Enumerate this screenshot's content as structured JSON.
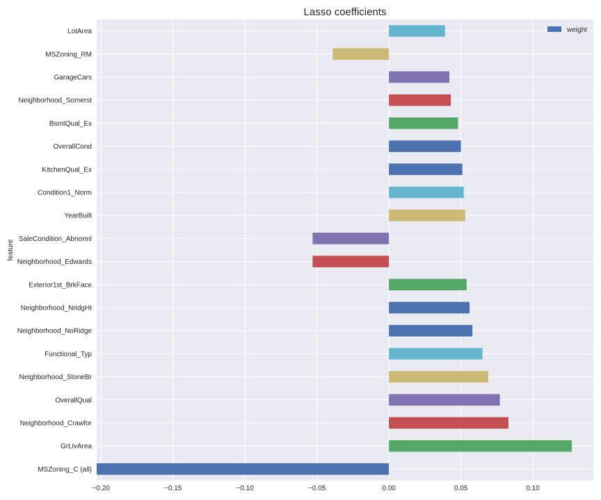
{
  "chart_data": {
    "type": "bar",
    "orientation": "horizontal",
    "title": "Lasso coefficients",
    "ylabel": "feature",
    "xlabel": "",
    "xlim": [
      -0.203,
      0.142
    ],
    "grid": true,
    "legend_placement": "top-right",
    "x_ticks": [
      {
        "value": -0.2,
        "label": "−0.20"
      },
      {
        "value": -0.15,
        "label": "−0.15"
      },
      {
        "value": -0.1,
        "label": "−0.10"
      },
      {
        "value": -0.05,
        "label": "−0.05"
      },
      {
        "value": 0.0,
        "label": "0.00"
      },
      {
        "value": 0.05,
        "label": "0.05"
      },
      {
        "value": 0.1,
        "label": "0.10"
      }
    ],
    "series": [
      {
        "name": "weight",
        "categories": [
          "LotArea",
          "MSZoning_RM",
          "GarageCars",
          "Neighborhood_Somerst",
          "BsmtQual_Ex",
          "OverallCond",
          "KitchenQual_Ex",
          "Condition1_Norm",
          "YearBuilt",
          "SaleCondition_Abnorml",
          "Neighborhood_Edwards",
          "Exterior1st_BrkFace",
          "Neighborhood_NridgHt",
          "Neighborhood_NoRidge",
          "Functional_Typ",
          "Neighborhood_StoneBr",
          "OverallQual",
          "Neighborhood_Crawfor",
          "GrLivArea",
          "MSZoning_C (all)"
        ],
        "values": [
          0.039,
          -0.039,
          0.042,
          0.043,
          0.048,
          0.05,
          0.051,
          0.052,
          0.053,
          -0.053,
          -0.053,
          0.054,
          0.056,
          0.058,
          0.065,
          0.069,
          0.077,
          0.083,
          0.127,
          -0.203
        ],
        "colors": [
          "#64b5cd",
          "#ccb974",
          "#8172b2",
          "#c44e52",
          "#55a868",
          "#4c72b0",
          "#4c72b0",
          "#64b5cd",
          "#ccb974",
          "#8172b2",
          "#c44e52",
          "#55a868",
          "#4c72b0",
          "#4c72b0",
          "#64b5cd",
          "#ccb974",
          "#8172b2",
          "#c44e52",
          "#55a868",
          "#4c72b0"
        ],
        "legend_color": "#4c72b0"
      }
    ],
    "colors": {
      "plot_background": "#eaeaf2",
      "grid": "#ffffff",
      "text": "#262626"
    }
  }
}
